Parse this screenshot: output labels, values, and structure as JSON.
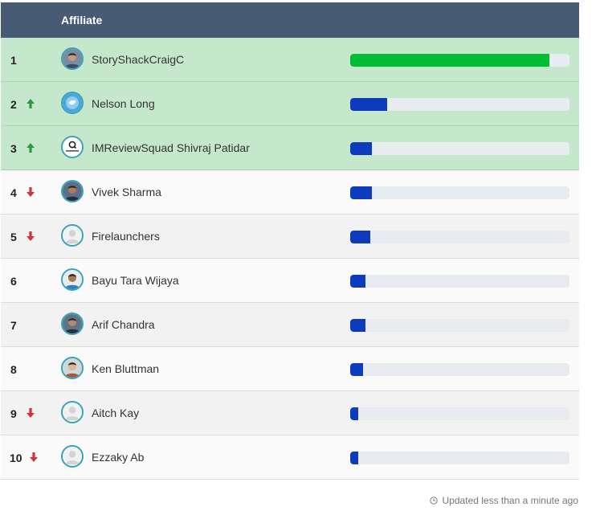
{
  "header": {
    "column_label": "Affiliate"
  },
  "colors": {
    "header_bg": "#475b74",
    "top_row_bg": "#c5e8cd",
    "lead_bar": "#00bd35",
    "bar": "#0c3bbd",
    "up_arrow": "#2a9a3f",
    "down_arrow": "#d2333a"
  },
  "rows": [
    {
      "rank": "1",
      "trend": "none",
      "name": "StoryShackCraigC",
      "avatar": "photo-avatar-icon",
      "progress": 0.91
    },
    {
      "rank": "2",
      "trend": "up",
      "name": "Nelson Long",
      "avatar": "bird-avatar-icon",
      "progress": 0.17
    },
    {
      "rank": "3",
      "trend": "up",
      "name": "IMReviewSquad Shivraj Patidar",
      "avatar": "logo-avatar-icon",
      "progress": 0.1
    },
    {
      "rank": "4",
      "trend": "down",
      "name": "Vivek Sharma",
      "avatar": "photo-avatar-icon",
      "progress": 0.1
    },
    {
      "rank": "5",
      "trend": "down",
      "name": "Firelaunchers",
      "avatar": "default-user-icon",
      "progress": 0.09
    },
    {
      "rank": "6",
      "trend": "none",
      "name": "Bayu Tara Wijaya",
      "avatar": "photo-avatar-icon",
      "progress": 0.07
    },
    {
      "rank": "7",
      "trend": "none",
      "name": "Arif Chandra",
      "avatar": "photo-avatar-icon",
      "progress": 0.07
    },
    {
      "rank": "8",
      "trend": "none",
      "name": "Ken Bluttman",
      "avatar": "photo-avatar-icon",
      "progress": 0.06
    },
    {
      "rank": "9",
      "trend": "down",
      "name": "Aitch Kay",
      "avatar": "default-user-icon",
      "progress": 0.035
    },
    {
      "rank": "10",
      "trend": "down",
      "name": "Ezzaky Ab",
      "avatar": "default-user-icon",
      "progress": 0.035
    }
  ],
  "footer": {
    "updated_text": "Updated less than a minute ago",
    "icon": "clock-icon"
  }
}
